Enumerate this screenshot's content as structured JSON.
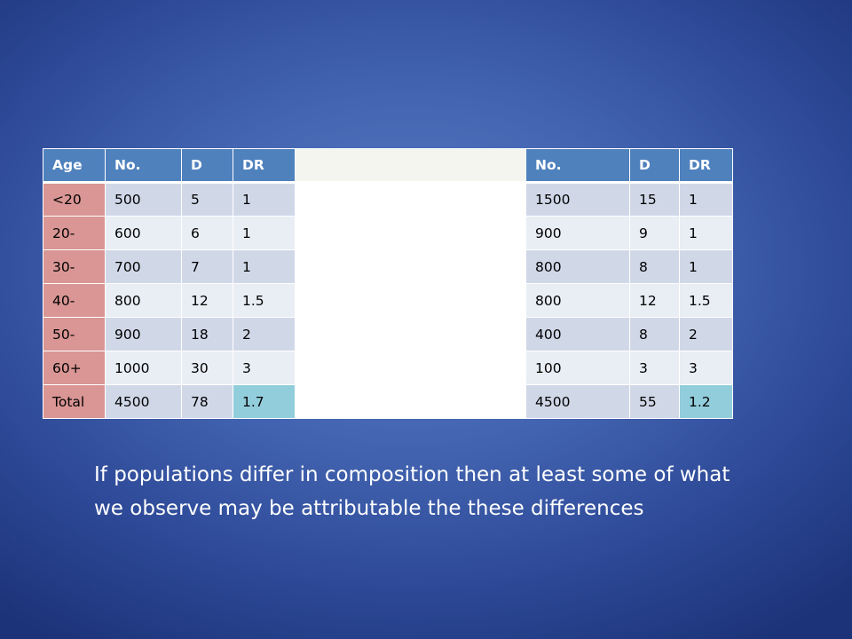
{
  "table": {
    "headers": [
      "Age",
      "No.",
      "D",
      "DR",
      "",
      "No.",
      "D",
      "DR"
    ],
    "rows": [
      [
        "<20",
        "500",
        "5",
        "1",
        "",
        "1500",
        "15",
        "1"
      ],
      [
        "20-",
        "600",
        "6",
        "1",
        "",
        "900",
        "9",
        "1"
      ],
      [
        "30-",
        "700",
        "7",
        "1",
        "",
        "800",
        "8",
        "1"
      ],
      [
        "40-",
        "800",
        "12",
        "1.5",
        "",
        "800",
        "12",
        "1.5"
      ],
      [
        "50-",
        "900",
        "18",
        "2",
        "",
        "400",
        "8",
        "2"
      ],
      [
        "60+",
        "1000",
        "30",
        "3",
        "",
        "100",
        "3",
        "3"
      ],
      [
        "Total",
        "4500",
        "78",
        "1.7",
        "",
        "4500",
        "55",
        "1.2"
      ]
    ]
  },
  "caption": "If populations differ in composition then at least some of what we observe may be attributable the these differences",
  "colors": {
    "header_blue": "#4f81bd",
    "age_column_red": "#d99694",
    "row_band_dark": "#d0d8e8",
    "row_band_light": "#e9edf4",
    "total_highlight": "#92cddc",
    "background": "#4466b2"
  }
}
